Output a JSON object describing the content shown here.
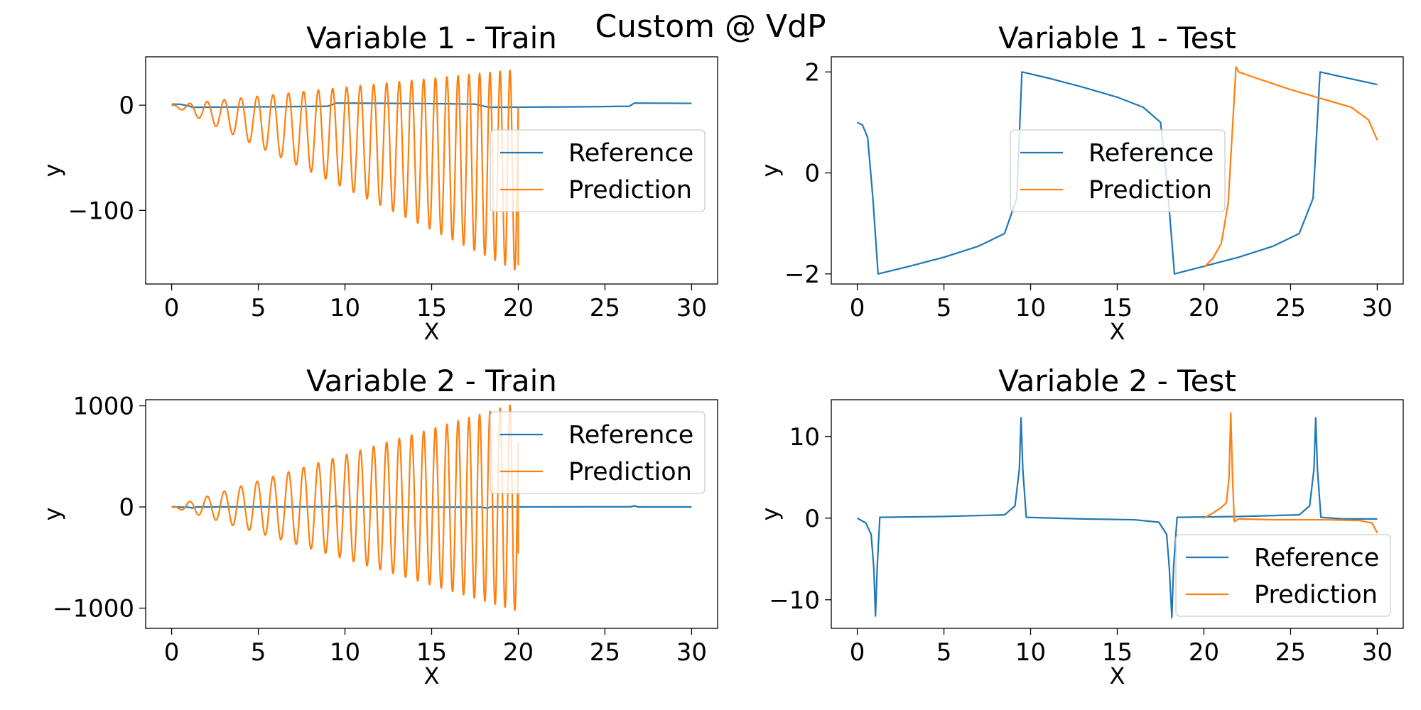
{
  "figure": {
    "suptitle": "Custom @ VdP",
    "colors": {
      "reference": "#1f77b4",
      "prediction": "#ff7f0e"
    }
  },
  "chart_data": [
    {
      "type": "line",
      "title": "Variable 1 - Train",
      "xlabel": "X",
      "ylabel": "y",
      "xlim": [
        -1.5,
        31.5
      ],
      "ylim": [
        -170,
        46
      ],
      "xticks": [
        0,
        5,
        10,
        15,
        20,
        25,
        30
      ],
      "yticks": [
        -100,
        0
      ],
      "ytick_labels": [
        "−100",
        "0"
      ],
      "legend": "center right",
      "series": [
        {
          "name": "Reference",
          "color": "#1f77b4",
          "points": [
            [
              0,
              1.0
            ],
            [
              0.5,
              0.9
            ],
            [
              1.0,
              -0.8
            ],
            [
              1.2,
              -2.0
            ],
            [
              3,
              -1.8
            ],
            [
              6,
              -1.5
            ],
            [
              9,
              -1.0
            ],
            [
              9.5,
              2.0
            ],
            [
              12,
              1.8
            ],
            [
              15,
              1.5
            ],
            [
              17.5,
              1.0
            ],
            [
              18.3,
              -2.0
            ],
            [
              21,
              -1.8
            ],
            [
              24,
              -1.5
            ],
            [
              26.4,
              -1.0
            ],
            [
              26.7,
              2.0
            ],
            [
              30,
              1.75
            ]
          ]
        },
        {
          "name": "Prediction",
          "color": "#ff7f0e",
          "sampled": {
            "x_range": [
              0,
              20
            ],
            "period": [
              1.05,
              0.55
            ],
            "amplitude_center": [
              0,
              -62
            ],
            "amplitude_range": [
              0,
              96
            ],
            "end_value": -152
          }
        }
      ]
    },
    {
      "type": "line",
      "title": "Variable 1 - Test",
      "xlabel": "X",
      "ylabel": "y",
      "xlim": [
        -1.5,
        31.5
      ],
      "ylim": [
        -2.2,
        2.3
      ],
      "xticks": [
        0,
        5,
        10,
        15,
        20,
        25,
        30
      ],
      "yticks": [
        -2,
        0,
        2
      ],
      "ytick_labels": [
        "−2",
        "0",
        "2"
      ],
      "legend": "center",
      "series": [
        {
          "name": "Reference",
          "color": "#1f77b4",
          "points": [
            [
              0,
              1.0
            ],
            [
              0.3,
              0.95
            ],
            [
              0.6,
              0.7
            ],
            [
              0.9,
              -0.5
            ],
            [
              1.2,
              -2.0
            ],
            [
              3,
              -1.85
            ],
            [
              5,
              -1.67
            ],
            [
              7,
              -1.45
            ],
            [
              8.5,
              -1.2
            ],
            [
              9.2,
              -0.5
            ],
            [
              9.5,
              2.0
            ],
            [
              11,
              1.88
            ],
            [
              13,
              1.7
            ],
            [
              15,
              1.5
            ],
            [
              16.5,
              1.3
            ],
            [
              17.5,
              1.0
            ],
            [
              17.9,
              -0.3
            ],
            [
              18.3,
              -2.0
            ],
            [
              20,
              -1.85
            ],
            [
              22,
              -1.67
            ],
            [
              24,
              -1.45
            ],
            [
              25.5,
              -1.2
            ],
            [
              26.3,
              -0.5
            ],
            [
              26.7,
              2.0
            ],
            [
              28,
              1.9
            ],
            [
              30,
              1.75
            ]
          ]
        },
        {
          "name": "Prediction",
          "color": "#ff7f0e",
          "points": [
            [
              20,
              -1.87
            ],
            [
              20.5,
              -1.7
            ],
            [
              21,
              -1.4
            ],
            [
              21.4,
              -0.6
            ],
            [
              21.7,
              1.2
            ],
            [
              21.85,
              2.1
            ],
            [
              22,
              2.0
            ],
            [
              23,
              1.88
            ],
            [
              25,
              1.65
            ],
            [
              27,
              1.45
            ],
            [
              28.5,
              1.3
            ],
            [
              29.5,
              1.05
            ],
            [
              30,
              0.65
            ]
          ]
        }
      ]
    },
    {
      "type": "line",
      "title": "Variable 2 - Train",
      "xlabel": "X",
      "ylabel": "y",
      "xlim": [
        -1.5,
        31.5
      ],
      "ylim": [
        -1200,
        1060
      ],
      "xticks": [
        0,
        5,
        10,
        15,
        20,
        25,
        30
      ],
      "yticks": [
        -1000,
        0,
        1000
      ],
      "ytick_labels": [
        "−1000",
        "0",
        "1000"
      ],
      "legend": "upper right",
      "series": [
        {
          "name": "Reference",
          "color": "#1f77b4",
          "points": [
            [
              0,
              0
            ],
            [
              1.0,
              -3
            ],
            [
              1.2,
              -12
            ],
            [
              1.4,
              0
            ],
            [
              9.3,
              2
            ],
            [
              9.5,
              12
            ],
            [
              9.7,
              0
            ],
            [
              17.9,
              -2
            ],
            [
              18.2,
              -12
            ],
            [
              18.4,
              0
            ],
            [
              26.5,
              2
            ],
            [
              26.7,
              12
            ],
            [
              26.9,
              0
            ],
            [
              30,
              0
            ]
          ]
        },
        {
          "name": "Prediction",
          "color": "#ff7f0e",
          "sampled": {
            "x_range": [
              0,
              20
            ],
            "period": [
              1.05,
              0.55
            ],
            "amplitude_center": [
              0,
              0
            ],
            "amplitude_range": [
              0,
              1030
            ],
            "end_value": -460
          }
        }
      ]
    },
    {
      "type": "line",
      "title": "Variable 2 - Test",
      "xlabel": "X",
      "ylabel": "y",
      "xlim": [
        -1.5,
        31.5
      ],
      "ylim": [
        -13.5,
        14.5
      ],
      "xticks": [
        0,
        5,
        10,
        15,
        20,
        25,
        30
      ],
      "yticks": [
        -10,
        0,
        10
      ],
      "ytick_labels": [
        "−10",
        "0",
        "10"
      ],
      "legend": "lower right",
      "series": [
        {
          "name": "Reference",
          "color": "#1f77b4",
          "points": [
            [
              0,
              0
            ],
            [
              0.5,
              -0.6
            ],
            [
              0.8,
              -2.0
            ],
            [
              0.95,
              -6
            ],
            [
              1.05,
              -12.0
            ],
            [
              1.15,
              -6
            ],
            [
              1.3,
              0.1
            ],
            [
              5,
              0.2
            ],
            [
              8.5,
              0.4
            ],
            [
              9.1,
              1.5
            ],
            [
              9.35,
              6
            ],
            [
              9.45,
              12.3
            ],
            [
              9.55,
              6
            ],
            [
              9.75,
              0.1
            ],
            [
              13,
              -0.1
            ],
            [
              16,
              -0.2
            ],
            [
              17.4,
              -0.5
            ],
            [
              17.85,
              -2.0
            ],
            [
              18.0,
              -6
            ],
            [
              18.15,
              -12.2
            ],
            [
              18.25,
              -6
            ],
            [
              18.45,
              0.1
            ],
            [
              22,
              0.2
            ],
            [
              25.5,
              0.4
            ],
            [
              26.1,
              1.5
            ],
            [
              26.35,
              6
            ],
            [
              26.45,
              12.3
            ],
            [
              26.55,
              6
            ],
            [
              26.75,
              0.1
            ],
            [
              28,
              -0.1
            ],
            [
              30,
              -0.1
            ]
          ]
        },
        {
          "name": "Prediction",
          "color": "#ff7f0e",
          "points": [
            [
              20,
              0
            ],
            [
              20.5,
              0.6
            ],
            [
              21.0,
              1.3
            ],
            [
              21.3,
              1.9
            ],
            [
              21.45,
              5
            ],
            [
              21.55,
              12.9
            ],
            [
              21.65,
              5
            ],
            [
              21.75,
              -0.4
            ],
            [
              22.0,
              -0.1
            ],
            [
              24,
              -0.2
            ],
            [
              27,
              -0.2
            ],
            [
              29,
              -0.3
            ],
            [
              29.7,
              -0.6
            ],
            [
              30,
              -1.8
            ]
          ]
        }
      ]
    }
  ]
}
